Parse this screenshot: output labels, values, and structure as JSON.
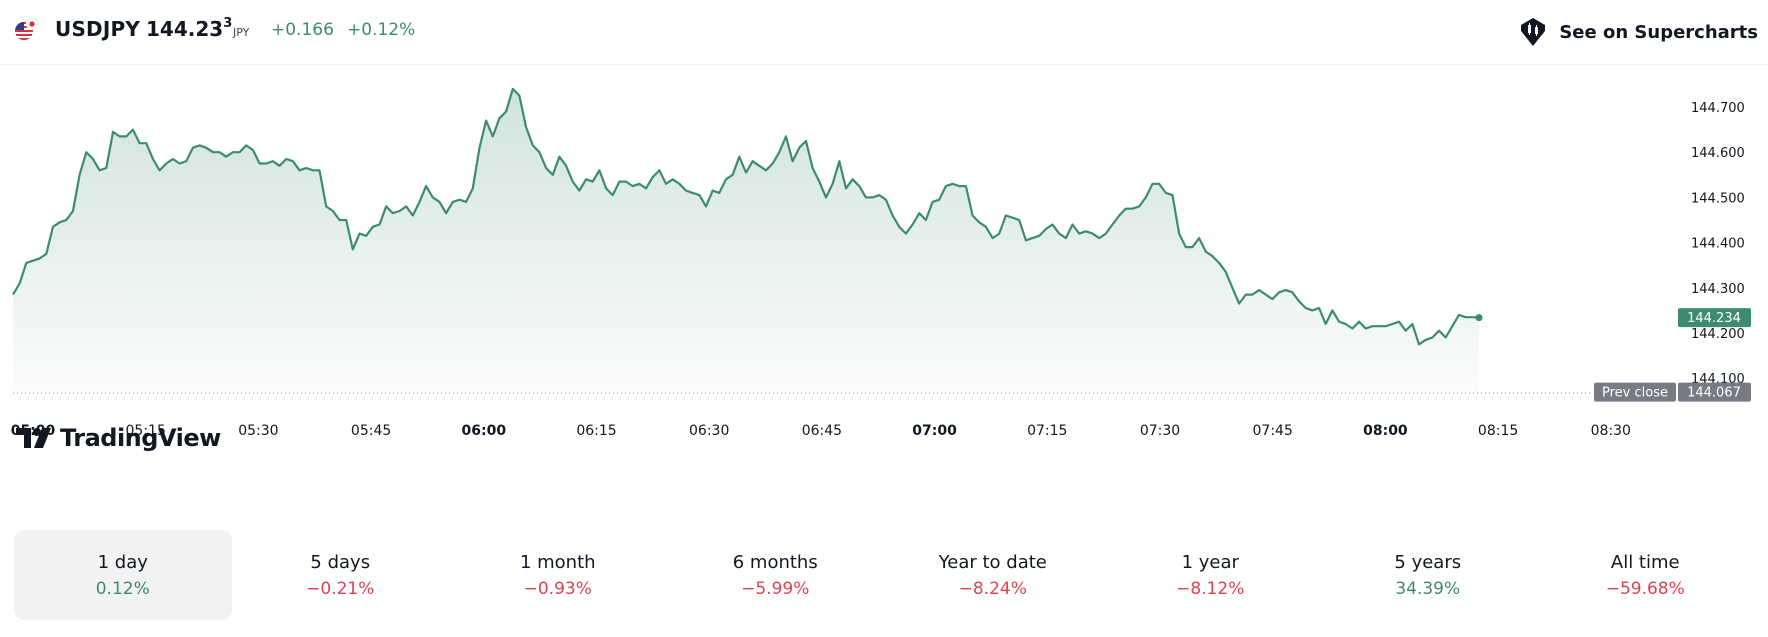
{
  "header": {
    "flag_icon": "us-jp-flag-icon",
    "symbol": "USDJPY",
    "price_main": "144.23",
    "price_last_digit": "3",
    "currency": "JPY",
    "change": "+0.166",
    "change_percent": "+0.12%",
    "supercharts_icon": "supercharts-icon",
    "supercharts_label": "See on Supercharts"
  },
  "colors": {
    "accent_green": "#3d8b72",
    "negative_red": "#e0414f",
    "prev_close_gray": "#787b86"
  },
  "chart_data": {
    "type": "area",
    "title": "USDJPY",
    "x_ticks": [
      "05:00",
      "05:15",
      "05:30",
      "05:45",
      "06:00",
      "06:15",
      "06:30",
      "06:45",
      "07:00",
      "07:15",
      "07:30",
      "07:45",
      "08:00",
      "08:15",
      "08:30"
    ],
    "x_ticks_bold": [
      "05:00",
      "06:00",
      "07:00",
      "08:00"
    ],
    "y_ticks": [
      "144.700",
      "144.600",
      "144.500",
      "144.400",
      "144.300",
      "144.200",
      "144.100"
    ],
    "ylim": [
      144.067,
      144.75
    ],
    "x_range_minutes": [
      0,
      219.7
    ],
    "last_price_label": "144.234",
    "last_price": 144.234,
    "prev_close_title": "Prev close",
    "prev_close_label": "144.067",
    "prev_close": 144.067,
    "series": [
      {
        "name": "USDJPY",
        "x": [
          0,
          1,
          2,
          3,
          4,
          5,
          6,
          7,
          8,
          9,
          10,
          11,
          12,
          13,
          14,
          15,
          16,
          17,
          18,
          19,
          20,
          21,
          22,
          23,
          24,
          25,
          26,
          27,
          28,
          29,
          30,
          31,
          32,
          33,
          34,
          35,
          36,
          37,
          38,
          39,
          40,
          41,
          42,
          43,
          44,
          45,
          46,
          47,
          48,
          49,
          50,
          51,
          52,
          53,
          54,
          55,
          56,
          57,
          58,
          59,
          60,
          61,
          62,
          63,
          64,
          65,
          66,
          67,
          68,
          69,
          70,
          71,
          72,
          73,
          74,
          75,
          76,
          77,
          78,
          79,
          80,
          81,
          82,
          83,
          84,
          85,
          86,
          87,
          88,
          89,
          90,
          91,
          92,
          93,
          94,
          95,
          96,
          97,
          98,
          99,
          100,
          101,
          102,
          103,
          104,
          105,
          106,
          107,
          108,
          109,
          110,
          111,
          112,
          113,
          114,
          115,
          116,
          117,
          118,
          119,
          120,
          121,
          122,
          123,
          124,
          125,
          126,
          127,
          128,
          129,
          130,
          131,
          132,
          133,
          134,
          135,
          136,
          137,
          138,
          139,
          140,
          141,
          142,
          143,
          144,
          145,
          146,
          147,
          148,
          149,
          150,
          151,
          152,
          153,
          154,
          155,
          156,
          157,
          158,
          159,
          160,
          161,
          162,
          163,
          164,
          165,
          166,
          167,
          168,
          169,
          170,
          171,
          172,
          173,
          174,
          175,
          176,
          177,
          178,
          179,
          180,
          181,
          182,
          183,
          184,
          185,
          186,
          187,
          188,
          189,
          190,
          191,
          192,
          193,
          194,
          195,
          196,
          197,
          198,
          199,
          200,
          201,
          202,
          203,
          204,
          205,
          206,
          207,
          208,
          209,
          210,
          211,
          212,
          213,
          214,
          215,
          216,
          217,
          218,
          219,
          220
        ],
        "values": [
          144.285,
          144.31,
          144.355,
          144.36,
          144.365,
          144.375,
          144.435,
          144.445,
          144.45,
          144.47,
          144.55,
          144.6,
          144.585,
          144.56,
          144.565,
          144.645,
          144.635,
          144.635,
          144.65,
          144.62,
          144.62,
          144.585,
          144.56,
          144.575,
          144.585,
          144.575,
          144.58,
          144.61,
          144.615,
          144.61,
          144.6,
          144.6,
          144.59,
          144.6,
          144.6,
          144.615,
          144.605,
          144.575,
          144.575,
          144.58,
          144.57,
          144.585,
          144.58,
          144.56,
          144.565,
          144.56,
          144.56,
          144.48,
          144.47,
          144.45,
          144.45,
          144.385,
          144.42,
          144.415,
          144.435,
          144.44,
          144.48,
          144.465,
          144.47,
          144.48,
          144.46,
          144.49,
          144.525,
          144.5,
          144.49,
          144.465,
          144.49,
          144.495,
          144.49,
          144.52,
          144.61,
          144.67,
          144.635,
          144.675,
          144.69,
          144.74,
          144.725,
          144.655,
          144.615,
          144.6,
          144.565,
          144.55,
          144.59,
          144.57,
          144.535,
          144.515,
          144.54,
          144.535,
          144.56,
          144.52,
          144.505,
          144.535,
          144.535,
          144.525,
          144.53,
          144.52,
          144.545,
          144.56,
          144.53,
          144.54,
          144.53,
          144.515,
          144.51,
          144.505,
          144.48,
          144.515,
          144.51,
          144.54,
          144.55,
          144.59,
          144.555,
          144.58,
          144.57,
          144.56,
          144.575,
          144.6,
          144.635,
          144.58,
          144.61,
          144.625,
          144.565,
          144.535,
          144.5,
          144.53,
          144.58,
          144.52,
          144.54,
          144.525,
          144.5,
          144.5,
          144.505,
          144.495,
          144.46,
          144.435,
          144.42,
          144.44,
          144.465,
          144.45,
          144.49,
          144.495,
          144.525,
          144.53,
          144.525,
          144.525,
          144.46,
          144.445,
          144.435,
          144.41,
          144.42,
          144.46,
          144.455,
          144.45,
          144.405,
          144.41,
          144.415,
          144.43,
          144.44,
          144.42,
          144.41,
          144.44,
          144.42,
          144.425,
          144.42,
          144.41,
          144.42,
          144.44,
          144.46,
          144.475,
          144.475,
          144.48,
          144.5,
          144.53,
          144.53,
          144.51,
          144.505,
          144.42,
          144.39,
          144.39,
          144.41,
          144.38,
          144.37,
          144.355,
          144.335,
          144.3,
          144.265,
          144.285,
          144.285,
          144.295,
          144.285,
          144.275,
          144.29,
          144.295,
          144.29,
          144.27,
          144.255,
          144.25,
          144.255,
          144.22,
          144.25,
          144.225,
          144.22,
          144.21,
          144.225,
          144.21,
          144.215,
          144.215,
          144.215,
          144.22,
          144.225,
          144.205,
          144.22,
          144.175,
          144.185,
          144.19,
          144.205,
          144.19,
          144.215,
          144.24,
          144.235,
          144.235,
          144.234
        ]
      }
    ]
  },
  "branding": {
    "logo_icon": "tradingview-logo-icon",
    "logo_text": "TradingView"
  },
  "periods": [
    {
      "label": "1 day",
      "value": "0.12%",
      "trend": "pos"
    },
    {
      "label": "5 days",
      "value": "−0.21%",
      "trend": "neg"
    },
    {
      "label": "1 month",
      "value": "−0.93%",
      "trend": "neg"
    },
    {
      "label": "6 months",
      "value": "−5.99%",
      "trend": "neg"
    },
    {
      "label": "Year to date",
      "value": "−8.24%",
      "trend": "neg"
    },
    {
      "label": "1 year",
      "value": "−8.12%",
      "trend": "neg"
    },
    {
      "label": "5 years",
      "value": "34.39%",
      "trend": "pos"
    },
    {
      "label": "All time",
      "value": "−59.68%",
      "trend": "neg"
    }
  ]
}
